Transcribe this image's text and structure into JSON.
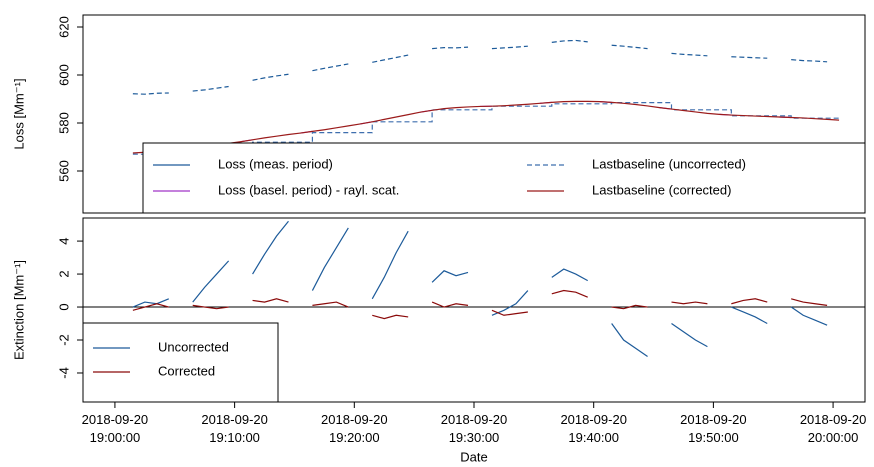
{
  "chart_data": [
    {
      "type": "line",
      "ylabel": "Loss [Mm⁻¹]",
      "x": [
        "2018-09-20 19:01:30",
        "2018-09-20 19:02:30",
        "2018-09-20 19:03:30",
        "2018-09-20 19:04:30",
        "2018-09-20 19:05:30",
        "2018-09-20 19:06:30",
        "2018-09-20 19:07:30",
        "2018-09-20 19:08:30",
        "2018-09-20 19:09:30",
        "2018-09-20 19:10:30",
        "2018-09-20 19:11:30",
        "2018-09-20 19:12:30",
        "2018-09-20 19:13:30",
        "2018-09-20 19:14:30",
        "2018-09-20 19:15:30",
        "2018-09-20 19:16:30",
        "2018-09-20 19:17:30",
        "2018-09-20 19:18:30",
        "2018-09-20 19:19:30",
        "2018-09-20 19:20:30",
        "2018-09-20 19:21:30",
        "2018-09-20 19:22:30",
        "2018-09-20 19:23:30",
        "2018-09-20 19:24:30",
        "2018-09-20 19:25:30",
        "2018-09-20 19:26:30",
        "2018-09-20 19:27:30",
        "2018-09-20 19:28:30",
        "2018-09-20 19:29:30",
        "2018-09-20 19:30:30",
        "2018-09-20 19:31:30",
        "2018-09-20 19:32:30",
        "2018-09-20 19:33:30",
        "2018-09-20 19:34:30",
        "2018-09-20 19:35:30",
        "2018-09-20 19:36:30",
        "2018-09-20 19:37:30",
        "2018-09-20 19:38:30",
        "2018-09-20 19:39:30",
        "2018-09-20 19:40:30",
        "2018-09-20 19:41:30",
        "2018-09-20 19:42:30",
        "2018-09-20 19:43:30",
        "2018-09-20 19:44:30",
        "2018-09-20 19:45:30",
        "2018-09-20 19:46:30",
        "2018-09-20 19:47:30",
        "2018-09-20 19:48:30",
        "2018-09-20 19:49:30",
        "2018-09-20 19:50:30",
        "2018-09-20 19:51:30",
        "2018-09-20 19:52:30",
        "2018-09-20 19:53:30",
        "2018-09-20 19:54:30",
        "2018-09-20 19:55:30",
        "2018-09-20 19:56:30",
        "2018-09-20 19:57:30",
        "2018-09-20 19:58:30",
        "2018-09-20 19:59:30",
        "2018-09-20 20:00:30"
      ],
      "xlim": [
        "2018-09-20 18:57:20",
        "2018-09-20 20:02:40"
      ],
      "ylim": [
        542.5,
        625
      ],
      "yticks": [
        560,
        580,
        600,
        620
      ],
      "legend": "bottom",
      "legend_ncol": 2,
      "series": [
        {
          "name": "Loss (meas. period)",
          "color": "#1d5b9a",
          "values": [
            592.2,
            592,
            592.4,
            592.5,
            null,
            593.3,
            593.8,
            594.5,
            595.2,
            null,
            597.8,
            598.8,
            599.6,
            600.3,
            null,
            601.8,
            602.8,
            603.7,
            604.6,
            null,
            605.3,
            606.3,
            607.3,
            608.3,
            null,
            611,
            611.4,
            611.3,
            611.6,
            null,
            611,
            611.3,
            611.6,
            612,
            null,
            613.6,
            614.2,
            614.4,
            613.8,
            null,
            612.4,
            612,
            611.5,
            611,
            null,
            609,
            608.6,
            608.3,
            608,
            null,
            607.6,
            607.4,
            607.2,
            607,
            null,
            606.4,
            606,
            605.8,
            605.5,
            null
          ],
          "dash": true
        },
        {
          "name": "Loss (basel. period) - rayl. scat.",
          "color": "#a035c8",
          "values": [
            null,
            null,
            null,
            null,
            569,
            569.5,
            null,
            null,
            null,
            572.2,
            573,
            null,
            null,
            null,
            575.8,
            576.5,
            null,
            null,
            null,
            579.6,
            580.5,
            null,
            null,
            null,
            584.5,
            585.3,
            null,
            null,
            null,
            586.9,
            587,
            null,
            null,
            null,
            588.2,
            588.6,
            null,
            null,
            null,
            588.9,
            588.6,
            null,
            null,
            null,
            586.4,
            585.8,
            null,
            null,
            null,
            583.6,
            583.3,
            null,
            null,
            null,
            582.5,
            582.3,
            null,
            null,
            null,
            null
          ]
        },
        {
          "name": "Lastbaseline (uncorrected)",
          "color": "#3f6fae",
          "dash": true,
          "step": true,
          "values": [
            567,
            567,
            567,
            567,
            567,
            569,
            569,
            569,
            569,
            569,
            572,
            572,
            572,
            572,
            572,
            576,
            576,
            576,
            576,
            576,
            580.5,
            580.5,
            580.5,
            580.5,
            580.5,
            585.5,
            585.5,
            585.5,
            585.5,
            585.5,
            587,
            587,
            587,
            587,
            587,
            588,
            588,
            588,
            588,
            588,
            588.5,
            588.5,
            588.5,
            588.5,
            588.5,
            585.5,
            585.5,
            585.5,
            585.5,
            585.5,
            583,
            583,
            583,
            583,
            583,
            582,
            582,
            582,
            582,
            582
          ]
        },
        {
          "name": "Lastbaseline (corrected)",
          "color": "#9b1b1b",
          "values": [
            567.5,
            567.8,
            568,
            568.5,
            569,
            569.5,
            570,
            570.8,
            571.5,
            572.2,
            573,
            573.8,
            574.5,
            575.2,
            575.8,
            576.5,
            577.2,
            578,
            578.8,
            579.6,
            580.5,
            581.5,
            582.5,
            583.5,
            584.5,
            585.3,
            586,
            586.4,
            586.7,
            586.9,
            587,
            587.2,
            587.5,
            587.8,
            588.2,
            588.6,
            588.9,
            589,
            589,
            588.9,
            588.6,
            588.2,
            587.7,
            587.1,
            586.4,
            585.8,
            585.2,
            584.6,
            584,
            583.6,
            583.3,
            583.1,
            582.9,
            582.7,
            582.5,
            582.3,
            582.1,
            581.8,
            581.5,
            581.2
          ]
        }
      ]
    },
    {
      "type": "line",
      "ylabel": "Extinction [Mm⁻¹]",
      "xlabel": "Date",
      "x": [
        "2018-09-20 19:01:30",
        "2018-09-20 19:02:30",
        "2018-09-20 19:03:30",
        "2018-09-20 19:04:30",
        "2018-09-20 19:05:30",
        "2018-09-20 19:06:30",
        "2018-09-20 19:07:30",
        "2018-09-20 19:08:30",
        "2018-09-20 19:09:30",
        "2018-09-20 19:10:30",
        "2018-09-20 19:11:30",
        "2018-09-20 19:12:30",
        "2018-09-20 19:13:30",
        "2018-09-20 19:14:30",
        "2018-09-20 19:15:30",
        "2018-09-20 19:16:30",
        "2018-09-20 19:17:30",
        "2018-09-20 19:18:30",
        "2018-09-20 19:19:30",
        "2018-09-20 19:20:30",
        "2018-09-20 19:21:30",
        "2018-09-20 19:22:30",
        "2018-09-20 19:23:30",
        "2018-09-20 19:24:30",
        "2018-09-20 19:25:30",
        "2018-09-20 19:26:30",
        "2018-09-20 19:27:30",
        "2018-09-20 19:28:30",
        "2018-09-20 19:29:30",
        "2018-09-20 19:30:30",
        "2018-09-20 19:31:30",
        "2018-09-20 19:32:30",
        "2018-09-20 19:33:30",
        "2018-09-20 19:34:30",
        "2018-09-20 19:35:30",
        "2018-09-20 19:36:30",
        "2018-09-20 19:37:30",
        "2018-09-20 19:38:30",
        "2018-09-20 19:39:30",
        "2018-09-20 19:40:30",
        "2018-09-20 19:41:30",
        "2018-09-20 19:42:30",
        "2018-09-20 19:43:30",
        "2018-09-20 19:44:30",
        "2018-09-20 19:45:30",
        "2018-09-20 19:46:30",
        "2018-09-20 19:47:30",
        "2018-09-20 19:48:30",
        "2018-09-20 19:49:30",
        "2018-09-20 19:50:30",
        "2018-09-20 19:51:30",
        "2018-09-20 19:52:30",
        "2018-09-20 19:53:30",
        "2018-09-20 19:54:30",
        "2018-09-20 19:55:30",
        "2018-09-20 19:56:30",
        "2018-09-20 19:57:30",
        "2018-09-20 19:58:30",
        "2018-09-20 19:59:30",
        "2018-09-20 20:00:30"
      ],
      "xlim": [
        "2018-09-20 18:57:20",
        "2018-09-20 20:02:40"
      ],
      "xticks": [
        "2018-09-20 19:00:00",
        "2018-09-20 19:10:00",
        "2018-09-20 19:20:00",
        "2018-09-20 19:30:00",
        "2018-09-20 19:40:00",
        "2018-09-20 19:50:00",
        "2018-09-20 20:00:00"
      ],
      "ylim": [
        -5.76,
        5.4
      ],
      "yticks": [
        -4,
        -2,
        0,
        2,
        4
      ],
      "reference_line": 0,
      "legend": "bottomleft",
      "legend_ncol": 1,
      "series": [
        {
          "name": "Uncorrected",
          "color": "#1d5b9a",
          "values": [
            0,
            0.3,
            0.2,
            0.5,
            null,
            0.3,
            1.2,
            2,
            2.8,
            null,
            2,
            3.2,
            4.3,
            5.2,
            null,
            1,
            2.4,
            3.6,
            4.8,
            null,
            0.5,
            1.8,
            3.3,
            4.6,
            null,
            1.5,
            2.2,
            1.9,
            2.1,
            null,
            -0.5,
            -0.2,
            0.2,
            1,
            null,
            1.8,
            2.3,
            2,
            1.6,
            null,
            -1,
            -2,
            -2.5,
            -3,
            null,
            -1,
            -1.5,
            -2,
            -2.4,
            null,
            0,
            -0.3,
            -0.6,
            -1,
            null,
            0,
            -0.5,
            -0.8,
            -1.1,
            null
          ]
        },
        {
          "name": "Corrected",
          "color": "#8b0a0a",
          "values": [
            -0.2,
            0,
            0.2,
            0,
            null,
            0.1,
            0,
            -0.1,
            0,
            null,
            0.4,
            0.3,
            0.5,
            0.3,
            null,
            0.1,
            0.2,
            0.3,
            0,
            null,
            -0.5,
            -0.7,
            -0.5,
            -0.6,
            null,
            0.3,
            0,
            0.2,
            0.1,
            null,
            -0.2,
            -0.5,
            -0.4,
            -0.3,
            null,
            0.8,
            1,
            0.9,
            0.6,
            null,
            0,
            -0.1,
            0.1,
            0,
            null,
            0.3,
            0.2,
            0.3,
            0.2,
            null,
            0.2,
            0.4,
            0.5,
            0.3,
            null,
            0.5,
            0.3,
            0.2,
            0.1,
            null
          ]
        }
      ]
    }
  ]
}
